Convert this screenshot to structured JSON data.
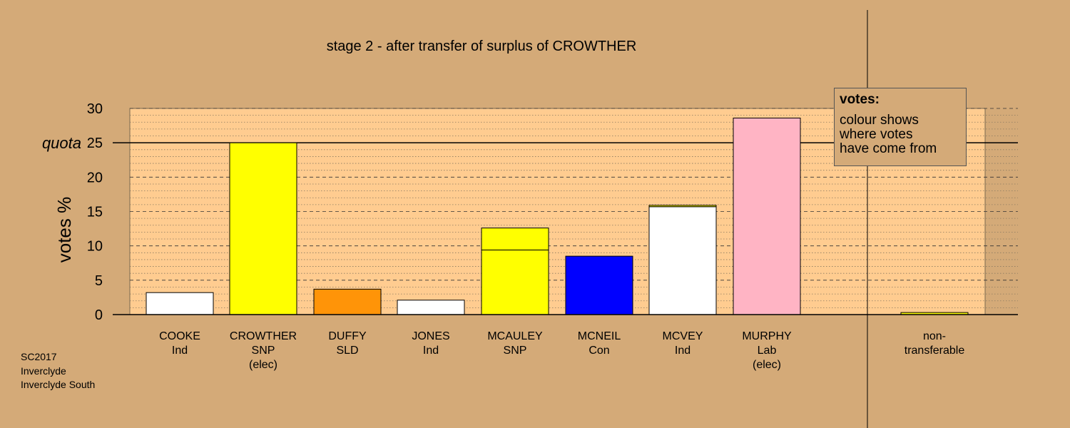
{
  "chart_data": {
    "type": "bar",
    "title": "stage 2 - after transfer of surplus of CROWTHER",
    "ylabel": "votes %",
    "ylim": [
      0,
      30
    ],
    "yticks": [
      0,
      5,
      10,
      15,
      20,
      25,
      30
    ],
    "quota": 25,
    "quota_label": "quota",
    "grid": true,
    "categories": [
      {
        "name": "COOKE",
        "party": "Ind",
        "status": ""
      },
      {
        "name": "CROWTHER",
        "party": "SNP",
        "status": "(elec)"
      },
      {
        "name": "DUFFY",
        "party": "SLD",
        "status": ""
      },
      {
        "name": "JONES",
        "party": "Ind",
        "status": ""
      },
      {
        "name": "MCAULEY",
        "party": "SNP",
        "status": ""
      },
      {
        "name": "MCNEIL",
        "party": "Con",
        "status": ""
      },
      {
        "name": "MCVEY",
        "party": "Ind",
        "status": ""
      },
      {
        "name": "MURPHY",
        "party": "Lab",
        "status": "(elec)"
      }
    ],
    "segments": [
      [
        {
          "value": 3.2,
          "color": "#ffffff"
        }
      ],
      [
        {
          "value": 25.0,
          "color": "#ffff00"
        }
      ],
      [
        {
          "value": 3.7,
          "color": "#ff9408"
        }
      ],
      [
        {
          "value": 2.1,
          "color": "#ffffff"
        }
      ],
      [
        {
          "value": 9.4,
          "color": "#ffff00"
        },
        {
          "value": 3.2,
          "color": "#ffff00"
        }
      ],
      [
        {
          "value": 8.5,
          "color": "#0000ff"
        }
      ],
      [
        {
          "value": 15.7,
          "color": "#ffffff"
        },
        {
          "value": 0.2,
          "color": "#ffff00"
        }
      ],
      [
        {
          "value": 28.6,
          "color": "#ffb4c4"
        }
      ]
    ],
    "nontransferable": {
      "label_line1": "non-",
      "label_line2": "transferable",
      "value": 0.3,
      "color": "#ffff00"
    }
  },
  "legend": {
    "title": "votes:",
    "lines": [
      "colour shows",
      "where votes",
      "have come from"
    ]
  },
  "footer": {
    "lines": [
      "SC2017",
      "Inverclyde",
      "Inverclyde South"
    ]
  },
  "colors": {
    "background": "#d4aa78",
    "plot_area": "#ffcc90"
  }
}
